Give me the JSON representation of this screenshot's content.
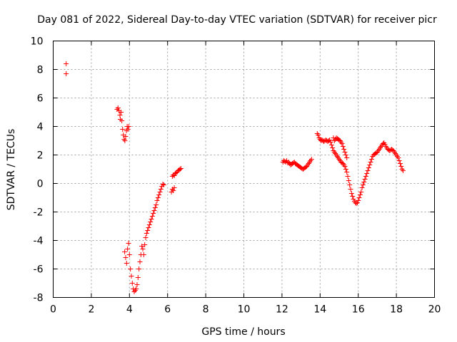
{
  "chart_data": {
    "type": "scatter",
    "title": "Day 081 of 2022, Sidereal Day-to-day VTEC variation (SDTVAR) for receiver picr",
    "xlabel": "GPS time / hours",
    "ylabel": "SDTVAR / TECUs",
    "xlim": [
      0,
      20
    ],
    "ylim": [
      -8,
      10
    ],
    "xticks": [
      0,
      2,
      4,
      6,
      8,
      10,
      12,
      14,
      16,
      18,
      20
    ],
    "yticks": [
      -8,
      -6,
      -4,
      -2,
      0,
      2,
      4,
      6,
      8,
      10
    ],
    "xtick_labels": [
      "0",
      "2",
      "4",
      "6",
      "8",
      "10",
      "12",
      "14",
      "16",
      "18",
      "20"
    ],
    "ytick_labels": [
      "-8",
      "-6",
      "-4",
      "-2",
      "0",
      "2",
      "4",
      "6",
      "8",
      "10"
    ],
    "grid": true,
    "marker": "+",
    "color": "#ff0000",
    "series": [
      {
        "name": "SDTVAR",
        "segments": [
          [
            [
              0.68,
              8.4
            ],
            [
              0.68,
              7.7
            ]
          ],
          [
            [
              3.35,
              5.2
            ],
            [
              3.4,
              5.3
            ],
            [
              3.45,
              5.1
            ],
            [
              3.5,
              4.8
            ],
            [
              3.52,
              4.5
            ],
            [
              3.56,
              5.0
            ],
            [
              3.6,
              4.4
            ],
            [
              3.64,
              3.8
            ],
            [
              3.68,
              3.4
            ],
            [
              3.72,
              3.1
            ],
            [
              3.76,
              3.0
            ],
            [
              3.8,
              3.3
            ],
            [
              3.84,
              3.7
            ],
            [
              3.88,
              4.0
            ],
            [
              3.92,
              3.8
            ],
            [
              3.96,
              4.0
            ]
          ],
          [
            [
              3.75,
              -4.8
            ],
            [
              3.8,
              -5.2
            ],
            [
              3.85,
              -5.6
            ],
            [
              3.9,
              -4.6
            ],
            [
              3.95,
              -4.2
            ],
            [
              4.0,
              -5.0
            ],
            [
              4.05,
              -6.0
            ],
            [
              4.1,
              -6.5
            ],
            [
              4.15,
              -7.0
            ],
            [
              4.2,
              -7.4
            ],
            [
              4.25,
              -7.6
            ],
            [
              4.3,
              -7.5
            ],
            [
              4.35,
              -7.4
            ],
            [
              4.4,
              -7.1
            ],
            [
              4.45,
              -6.6
            ],
            [
              4.5,
              -6.0
            ],
            [
              4.55,
              -5.5
            ],
            [
              4.6,
              -5.0
            ],
            [
              4.65,
              -4.4
            ],
            [
              4.7,
              -4.6
            ],
            [
              4.75,
              -5.0
            ],
            [
              4.8,
              -4.3
            ],
            [
              4.85,
              -3.8
            ],
            [
              4.9,
              -3.5
            ],
            [
              4.95,
              -3.3
            ],
            [
              5.0,
              -3.1
            ],
            [
              5.05,
              -2.9
            ],
            [
              5.1,
              -2.7
            ],
            [
              5.15,
              -2.5
            ],
            [
              5.2,
              -2.3
            ],
            [
              5.25,
              -2.1
            ],
            [
              5.3,
              -1.9
            ],
            [
              5.35,
              -1.7
            ],
            [
              5.4,
              -1.5
            ],
            [
              5.45,
              -1.2
            ],
            [
              5.5,
              -1.0
            ],
            [
              5.55,
              -0.8
            ],
            [
              5.6,
              -0.6
            ],
            [
              5.65,
              -0.4
            ],
            [
              5.7,
              -0.2
            ],
            [
              5.75,
              -0.05
            ],
            [
              5.8,
              -0.1
            ]
          ],
          [
            [
              6.2,
              -0.6
            ],
            [
              6.25,
              -0.4
            ],
            [
              6.3,
              -0.5
            ],
            [
              6.35,
              -0.3
            ],
            [
              6.25,
              0.5
            ],
            [
              6.3,
              0.6
            ],
            [
              6.35,
              0.55
            ],
            [
              6.4,
              0.7
            ],
            [
              6.45,
              0.75
            ],
            [
              6.5,
              0.8
            ],
            [
              6.55,
              0.9
            ],
            [
              6.6,
              0.95
            ],
            [
              6.65,
              1.0
            ],
            [
              6.7,
              1.05
            ]
          ],
          [
            [
              12.05,
              1.5
            ],
            [
              12.1,
              1.6
            ],
            [
              12.15,
              1.55
            ],
            [
              12.2,
              1.5
            ],
            [
              12.25,
              1.6
            ],
            [
              12.3,
              1.45
            ],
            [
              12.35,
              1.5
            ],
            [
              12.4,
              1.4
            ],
            [
              12.45,
              1.3
            ],
            [
              12.5,
              1.35
            ],
            [
              12.55,
              1.4
            ],
            [
              12.6,
              1.45
            ],
            [
              12.65,
              1.5
            ],
            [
              12.7,
              1.4
            ],
            [
              12.75,
              1.35
            ],
            [
              12.8,
              1.3
            ],
            [
              12.85,
              1.25
            ],
            [
              12.9,
              1.2
            ],
            [
              12.95,
              1.15
            ],
            [
              13.0,
              1.1
            ],
            [
              13.05,
              1.05
            ],
            [
              13.1,
              1.0
            ],
            [
              13.15,
              1.05
            ],
            [
              13.2,
              1.1
            ],
            [
              13.25,
              1.15
            ],
            [
              13.3,
              1.2
            ],
            [
              13.35,
              1.3
            ],
            [
              13.4,
              1.4
            ],
            [
              13.45,
              1.5
            ],
            [
              13.5,
              1.6
            ],
            [
              13.55,
              1.7
            ]
          ],
          [
            [
              13.85,
              3.5
            ],
            [
              13.9,
              3.4
            ],
            [
              13.95,
              3.2
            ],
            [
              14.0,
              3.1
            ],
            [
              14.05,
              3.0
            ],
            [
              14.1,
              3.05
            ],
            [
              14.15,
              3.0
            ],
            [
              14.2,
              2.95
            ],
            [
              14.25,
              3.0
            ],
            [
              14.3,
              3.05
            ],
            [
              14.35,
              3.0
            ],
            [
              14.4,
              2.95
            ],
            [
              14.45,
              3.0
            ],
            [
              14.5,
              3.05
            ],
            [
              14.55,
              2.9
            ],
            [
              14.6,
              2.7
            ],
            [
              14.65,
              2.5
            ],
            [
              14.7,
              2.3
            ],
            [
              14.75,
              2.2
            ],
            [
              14.8,
              2.1
            ],
            [
              14.85,
              2.0
            ],
            [
              14.9,
              1.9
            ],
            [
              14.95,
              1.8
            ],
            [
              15.0,
              1.7
            ],
            [
              15.05,
              1.6
            ],
            [
              15.1,
              1.5
            ],
            [
              15.15,
              1.45
            ],
            [
              15.2,
              1.4
            ],
            [
              15.25,
              1.3
            ],
            [
              15.3,
              1.2
            ],
            [
              15.35,
              1.0
            ],
            [
              15.4,
              0.8
            ],
            [
              15.45,
              0.5
            ],
            [
              15.5,
              0.2
            ],
            [
              15.55,
              -0.1
            ],
            [
              15.6,
              -0.4
            ],
            [
              15.65,
              -0.7
            ],
            [
              15.7,
              -0.9
            ],
            [
              15.75,
              -1.1
            ],
            [
              15.8,
              -1.25
            ],
            [
              15.85,
              -1.35
            ],
            [
              15.9,
              -1.4
            ],
            [
              15.95,
              -1.35
            ],
            [
              16.0,
              -1.2
            ],
            [
              16.05,
              -1.0
            ],
            [
              16.1,
              -0.8
            ],
            [
              16.15,
              -0.6
            ],
            [
              16.2,
              -0.3
            ],
            [
              16.25,
              -0.1
            ],
            [
              16.3,
              0.1
            ],
            [
              16.35,
              0.3
            ],
            [
              16.4,
              0.5
            ],
            [
              16.45,
              0.7
            ],
            [
              16.5,
              0.9
            ],
            [
              16.55,
              1.1
            ],
            [
              16.6,
              1.3
            ],
            [
              16.65,
              1.5
            ],
            [
              16.7,
              1.7
            ],
            [
              16.75,
              1.9
            ],
            [
              16.8,
              2.0
            ],
            [
              16.85,
              2.05
            ],
            [
              16.9,
              2.1
            ],
            [
              16.95,
              2.15
            ],
            [
              17.0,
              2.2
            ],
            [
              17.05,
              2.3
            ],
            [
              17.1,
              2.4
            ],
            [
              17.15,
              2.5
            ],
            [
              17.2,
              2.6
            ],
            [
              17.25,
              2.7
            ],
            [
              17.3,
              2.8
            ],
            [
              17.35,
              2.85
            ],
            [
              17.4,
              2.75
            ],
            [
              17.45,
              2.6
            ],
            [
              17.5,
              2.5
            ],
            [
              17.55,
              2.4
            ],
            [
              17.6,
              2.35
            ],
            [
              17.65,
              2.3
            ],
            [
              17.7,
              2.35
            ],
            [
              17.75,
              2.4
            ],
            [
              17.8,
              2.35
            ],
            [
              17.85,
              2.3
            ],
            [
              17.9,
              2.2
            ],
            [
              17.95,
              2.1
            ],
            [
              18.0,
              2.0
            ],
            [
              18.05,
              1.9
            ],
            [
              18.1,
              1.8
            ],
            [
              18.15,
              1.6
            ],
            [
              18.2,
              1.4
            ],
            [
              18.25,
              1.2
            ],
            [
              18.3,
              1.0
            ],
            [
              18.35,
              0.9
            ]
          ],
          [
            [
              14.7,
              3.2
            ],
            [
              14.75,
              3.0
            ],
            [
              14.8,
              3.1
            ],
            [
              14.85,
              3.2
            ],
            [
              14.9,
              3.15
            ],
            [
              14.95,
              3.1
            ],
            [
              15.0,
              3.05
            ],
            [
              15.05,
              3.0
            ],
            [
              15.1,
              2.9
            ],
            [
              15.15,
              2.8
            ],
            [
              15.2,
              2.6
            ],
            [
              15.25,
              2.4
            ],
            [
              15.3,
              2.2
            ],
            [
              15.35,
              2.0
            ],
            [
              15.4,
              1.8
            ]
          ]
        ]
      }
    ]
  }
}
